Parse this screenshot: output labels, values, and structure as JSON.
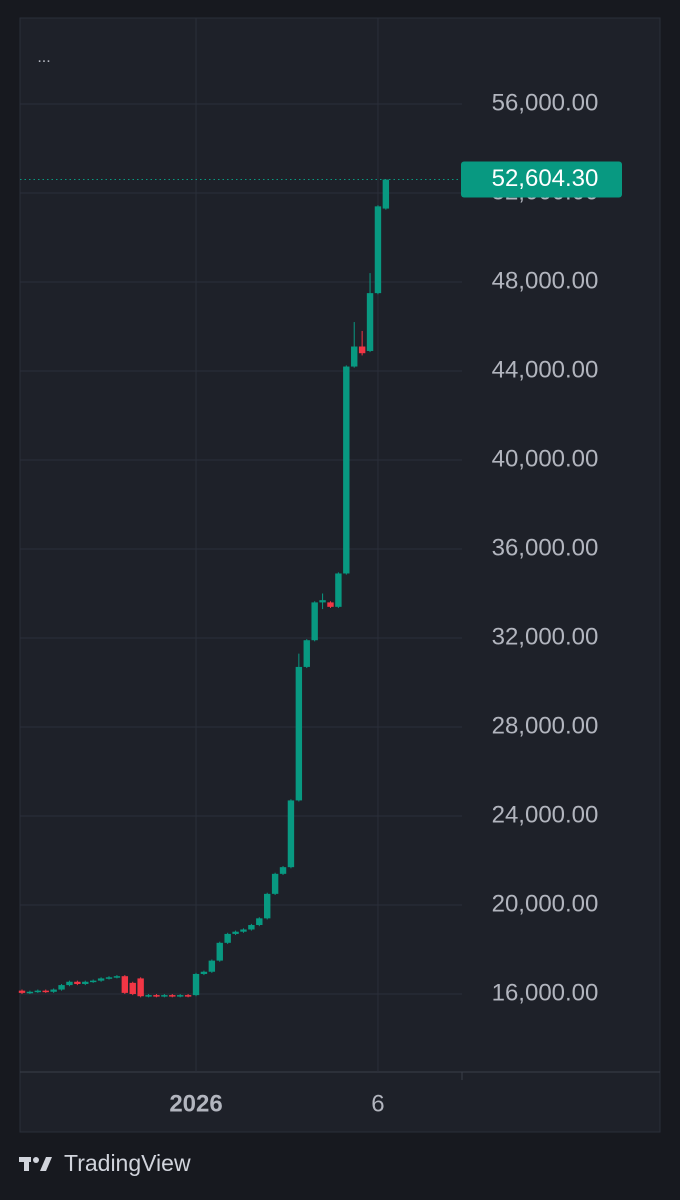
{
  "menu": "...",
  "brand": "TradingView",
  "chart_data": {
    "type": "candlestick",
    "categories": [
      null,
      null,
      null,
      null,
      null,
      null,
      null,
      null,
      null,
      null,
      null,
      null,
      null,
      null,
      null,
      null,
      null,
      null,
      null,
      null,
      null,
      null,
      "2026",
      null,
      null,
      null,
      null,
      null,
      null,
      null,
      null,
      null,
      null,
      null,
      null,
      null,
      null,
      null,
      null,
      null,
      null,
      null,
      null,
      null,
      null,
      "6",
      null
    ],
    "open": [
      16150,
      16050,
      16100,
      16150,
      16100,
      16200,
      16400,
      16550,
      16450,
      16550,
      16600,
      16700,
      16750,
      16800,
      16500,
      16700,
      15900,
      15950,
      15900,
      15950,
      15900,
      15950,
      15950,
      16900,
      17000,
      17500,
      18300,
      18700,
      18800,
      18900,
      19100,
      19400,
      20500,
      21400,
      21700,
      24700,
      30700,
      31900,
      33600,
      33600,
      33400,
      34900,
      44200,
      45100,
      44900,
      47500,
      51300
    ],
    "high": [
      16200,
      16150,
      16200,
      16200,
      16250,
      16450,
      16600,
      16600,
      16600,
      16650,
      16750,
      16800,
      16850,
      16850,
      16550,
      16750,
      16000,
      16000,
      16000,
      16000,
      16000,
      16000,
      16950,
      17050,
      17550,
      18350,
      18750,
      18850,
      18950,
      19150,
      19450,
      20550,
      21450,
      21750,
      24750,
      31300,
      31950,
      33650,
      34000,
      33650,
      34950,
      44250,
      46200,
      45800,
      48400,
      51450,
      52604.3
    ],
    "low": [
      16000,
      16000,
      16050,
      16050,
      16050,
      16150,
      16350,
      16400,
      16400,
      16500,
      16550,
      16650,
      16700,
      16000,
      15950,
      15850,
      15850,
      15850,
      15850,
      15850,
      15850,
      15850,
      15900,
      16850,
      16950,
      17450,
      18250,
      18650,
      18750,
      18850,
      19050,
      19350,
      20450,
      21350,
      21650,
      24650,
      30650,
      31850,
      33300,
      33350,
      33350,
      34850,
      44150,
      44700,
      44850,
      47450,
      51250
    ],
    "close": [
      16050,
      16100,
      16150,
      16100,
      16200,
      16400,
      16550,
      16450,
      16550,
      16600,
      16700,
      16750,
      16800,
      16050,
      16000,
      15900,
      15950,
      15900,
      15950,
      15900,
      15950,
      15900,
      16900,
      17000,
      17500,
      18300,
      18700,
      18800,
      18900,
      19100,
      19400,
      20500,
      21400,
      21700,
      24700,
      30700,
      31900,
      33600,
      33700,
      33400,
      34900,
      44200,
      45100,
      44800,
      47500,
      51400,
      52604.3
    ],
    "up_color": "#089981",
    "down_color": "#f23645",
    "ylim": [
      12494,
      59865
    ],
    "yticks": [
      {
        "value": 16000,
        "label": "16,000.00"
      },
      {
        "value": 20000,
        "label": "20,000.00"
      },
      {
        "value": 24000,
        "label": "24,000.00"
      },
      {
        "value": 28000,
        "label": "28,000.00"
      },
      {
        "value": 32000,
        "label": "32,000.00"
      },
      {
        "value": 36000,
        "label": "36,000.00"
      },
      {
        "value": 40000,
        "label": "40,000.00"
      },
      {
        "value": 44000,
        "label": "44,000.00"
      },
      {
        "value": 48000,
        "label": "48,000.00"
      },
      {
        "value": 52000,
        "label": "52,000.00"
      },
      {
        "value": 56000,
        "label": "56,000.00"
      }
    ],
    "last_price": {
      "value": 52604.3,
      "label": "52,604.30"
    },
    "grid": true
  }
}
